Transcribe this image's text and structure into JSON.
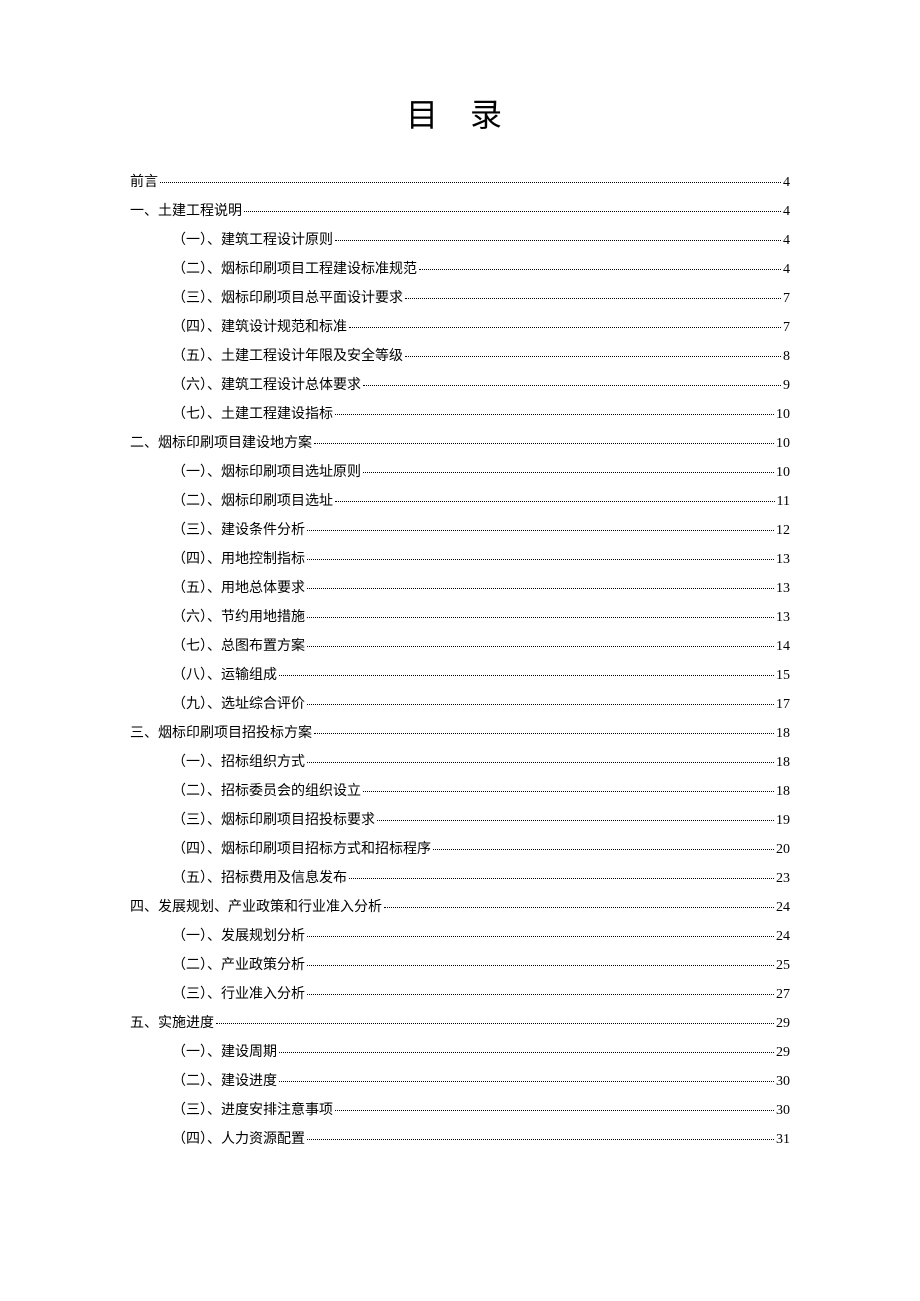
{
  "title": "目 录",
  "entries": [
    {
      "level": 0,
      "label": "前言",
      "page": "4"
    },
    {
      "level": 0,
      "label": "一、土建工程说明",
      "page": "4"
    },
    {
      "level": 1,
      "label": "（一）、建筑工程设计原则",
      "page": "4"
    },
    {
      "level": 1,
      "label": "（二）、烟标印刷项目工程建设标准规范",
      "page": "4"
    },
    {
      "level": 1,
      "label": "（三）、烟标印刷项目总平面设计要求",
      "page": "7"
    },
    {
      "level": 1,
      "label": "（四）、建筑设计规范和标准",
      "page": "7"
    },
    {
      "level": 1,
      "label": "（五）、土建工程设计年限及安全等级",
      "page": "8"
    },
    {
      "level": 1,
      "label": "（六）、建筑工程设计总体要求",
      "page": "9"
    },
    {
      "level": 1,
      "label": "（七）、土建工程建设指标",
      "page": "10"
    },
    {
      "level": 0,
      "label": "二、烟标印刷项目建设地方案",
      "page": "10"
    },
    {
      "level": 1,
      "label": "（一）、烟标印刷项目选址原则",
      "page": "10"
    },
    {
      "level": 1,
      "label": "（二）、烟标印刷项目选址",
      "page": "11"
    },
    {
      "level": 1,
      "label": "（三）、建设条件分析",
      "page": "12"
    },
    {
      "level": 1,
      "label": "（四）、用地控制指标",
      "page": "13"
    },
    {
      "level": 1,
      "label": "（五）、用地总体要求",
      "page": "13"
    },
    {
      "level": 1,
      "label": "（六）、节约用地措施",
      "page": "13"
    },
    {
      "level": 1,
      "label": "（七）、总图布置方案",
      "page": "14"
    },
    {
      "level": 1,
      "label": "（八）、运输组成",
      "page": "15"
    },
    {
      "level": 1,
      "label": "（九）、选址综合评价",
      "page": "17"
    },
    {
      "level": 0,
      "label": "三、烟标印刷项目招投标方案",
      "page": "18"
    },
    {
      "level": 1,
      "label": "（一）、招标组织方式",
      "page": "18"
    },
    {
      "level": 1,
      "label": "（二）、招标委员会的组织设立",
      "page": "18"
    },
    {
      "level": 1,
      "label": "（三）、烟标印刷项目招投标要求",
      "page": "19"
    },
    {
      "level": 1,
      "label": "（四）、烟标印刷项目招标方式和招标程序",
      "page": "20"
    },
    {
      "level": 1,
      "label": "（五）、招标费用及信息发布",
      "page": "23"
    },
    {
      "level": 0,
      "label": "四、发展规划、产业政策和行业准入分析",
      "page": "24"
    },
    {
      "level": 1,
      "label": "（一）、发展规划分析",
      "page": "24"
    },
    {
      "level": 1,
      "label": "（二）、产业政策分析",
      "page": "25"
    },
    {
      "level": 1,
      "label": "（三）、行业准入分析",
      "page": "27"
    },
    {
      "level": 0,
      "label": "五、实施进度",
      "page": "29"
    },
    {
      "level": 1,
      "label": "（一）、建设周期",
      "page": "29"
    },
    {
      "level": 1,
      "label": "（二）、建设进度",
      "page": "30"
    },
    {
      "level": 1,
      "label": "（三）、进度安排注意事项",
      "page": "30"
    },
    {
      "level": 1,
      "label": "（四）、人力资源配置",
      "page": "31"
    }
  ],
  "style": {
    "background_color": "#ffffff",
    "text_color": "#000000",
    "title_fontsize": 32,
    "body_fontsize": 14,
    "indent_level_0": 0,
    "indent_level_1": 42
  }
}
